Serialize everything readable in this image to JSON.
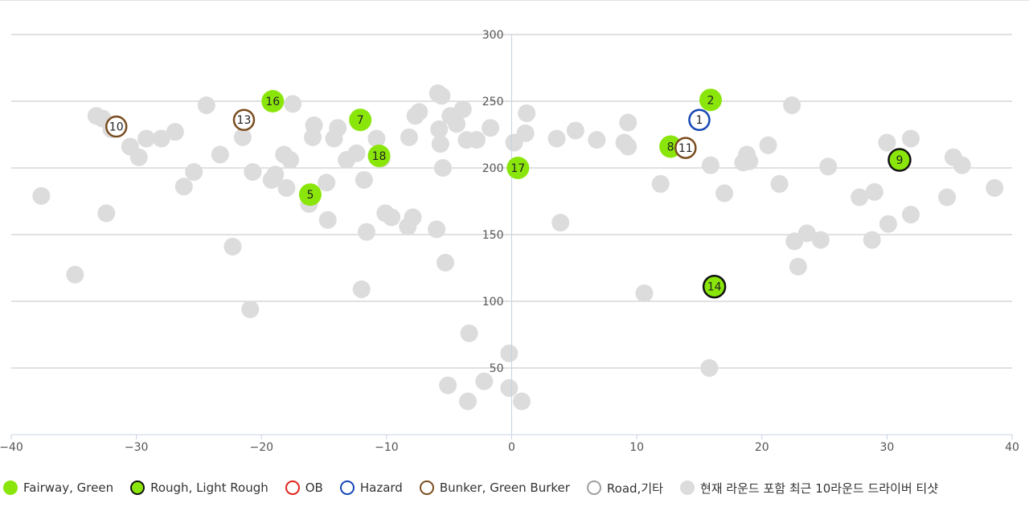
{
  "chart_data": {
    "type": "scatter",
    "title": "",
    "xlabel": "",
    "ylabel": "",
    "xlim": [
      -40,
      40
    ],
    "ylim": [
      0,
      300
    ],
    "x_ticks": [
      -40,
      -30,
      -20,
      -10,
      0,
      10,
      20,
      30,
      40
    ],
    "y_ticks": [
      50,
      100,
      150,
      200,
      250,
      300
    ],
    "grid": true,
    "legend_position": "bottom",
    "colors": {
      "fairway": "#8ae60a",
      "rough_stroke": "#111111",
      "ob": "#e0231b",
      "hazard": "#1446b4",
      "bunker": "#7a4d20",
      "road": "#9e9e9e",
      "history": "#dcdcdc"
    },
    "legend": [
      {
        "key": "fairway",
        "label": "Fairway, Green"
      },
      {
        "key": "rough",
        "label": "Rough, Light Rough"
      },
      {
        "key": "ob",
        "label": "OB"
      },
      {
        "key": "hazard",
        "label": "Hazard"
      },
      {
        "key": "bunker",
        "label": "Bunker, Green Burker"
      },
      {
        "key": "road",
        "label": "Road,기타"
      },
      {
        "key": "history",
        "label": "현재 라운드 포함 최근 10라운드 드라이버 티샷"
      }
    ],
    "history_points": [
      [
        -37.6,
        179
      ],
      [
        -34.9,
        120
      ],
      [
        -33.2,
        239
      ],
      [
        -32.7,
        237
      ],
      [
        -32.4,
        166
      ],
      [
        -32.0,
        229
      ],
      [
        -30.5,
        216
      ],
      [
        -29.8,
        208
      ],
      [
        -29.2,
        222
      ],
      [
        -28.0,
        222
      ],
      [
        -26.9,
        227
      ],
      [
        -26.2,
        186
      ],
      [
        -25.4,
        197
      ],
      [
        -24.4,
        247
      ],
      [
        -23.3,
        210
      ],
      [
        -22.3,
        141
      ],
      [
        -21.5,
        223
      ],
      [
        -20.9,
        94
      ],
      [
        -20.7,
        197
      ],
      [
        -19.2,
        191
      ],
      [
        -18.9,
        195
      ],
      [
        -18.2,
        210
      ],
      [
        -18.0,
        185
      ],
      [
        -17.7,
        206
      ],
      [
        -17.5,
        248
      ],
      [
        -16.2,
        173
      ],
      [
        -15.9,
        223
      ],
      [
        -15.8,
        232
      ],
      [
        -14.8,
        189
      ],
      [
        -14.7,
        161
      ],
      [
        -14.2,
        222
      ],
      [
        -13.9,
        230
      ],
      [
        -13.2,
        206
      ],
      [
        -12.4,
        211
      ],
      [
        -12.0,
        109
      ],
      [
        -11.8,
        191
      ],
      [
        -11.6,
        152
      ],
      [
        -10.8,
        222
      ],
      [
        -10.4,
        207
      ],
      [
        -10.1,
        166
      ],
      [
        -9.6,
        163
      ],
      [
        -8.3,
        156
      ],
      [
        -8.2,
        223
      ],
      [
        -7.9,
        163
      ],
      [
        -7.7,
        239
      ],
      [
        -7.4,
        242
      ],
      [
        -6.0,
        154
      ],
      [
        -5.9,
        256
      ],
      [
        -5.8,
        229
      ],
      [
        -5.7,
        218
      ],
      [
        -5.6,
        254
      ],
      [
        -5.5,
        200
      ],
      [
        -5.3,
        129
      ],
      [
        -5.1,
        37
      ],
      [
        -4.9,
        239
      ],
      [
        -4.4,
        233
      ],
      [
        -3.9,
        244
      ],
      [
        -3.6,
        221
      ],
      [
        -3.5,
        25
      ],
      [
        -3.4,
        76
      ],
      [
        -2.8,
        221
      ],
      [
        -2.2,
        40
      ],
      [
        -1.7,
        230
      ],
      [
        -0.2,
        61
      ],
      [
        -0.2,
        35
      ],
      [
        0.2,
        219
      ],
      [
        0.8,
        25
      ],
      [
        1.1,
        226
      ],
      [
        1.2,
        241
      ],
      [
        3.6,
        222
      ],
      [
        3.9,
        159
      ],
      [
        5.1,
        228
      ],
      [
        6.8,
        221
      ],
      [
        9.0,
        219
      ],
      [
        9.3,
        234
      ],
      [
        9.3,
        216
      ],
      [
        10.6,
        106
      ],
      [
        11.9,
        188
      ],
      [
        15.8,
        50
      ],
      [
        15.9,
        202
      ],
      [
        17.0,
        181
      ],
      [
        18.5,
        204
      ],
      [
        18.8,
        210
      ],
      [
        19.0,
        205
      ],
      [
        20.5,
        217
      ],
      [
        21.4,
        188
      ],
      [
        22.4,
        247
      ],
      [
        22.6,
        145
      ],
      [
        22.9,
        126
      ],
      [
        23.6,
        151
      ],
      [
        24.7,
        146
      ],
      [
        25.3,
        201
      ],
      [
        27.8,
        178
      ],
      [
        28.8,
        146
      ],
      [
        29.0,
        182
      ],
      [
        30.0,
        219
      ],
      [
        30.1,
        158
      ],
      [
        31.9,
        222
      ],
      [
        31.9,
        165
      ],
      [
        34.8,
        178
      ],
      [
        35.3,
        208
      ],
      [
        36.0,
        202
      ],
      [
        38.6,
        185
      ]
    ],
    "shots": [
      {
        "label": "1",
        "x": 15.0,
        "y": 236,
        "type": "hazard"
      },
      {
        "label": "2",
        "x": 15.9,
        "y": 251,
        "type": "fairway"
      },
      {
        "label": "5",
        "x": -16.1,
        "y": 180,
        "type": "fairway"
      },
      {
        "label": "7",
        "x": -12.1,
        "y": 236,
        "type": "fairway"
      },
      {
        "label": "8",
        "x": 12.7,
        "y": 216,
        "type": "fairway"
      },
      {
        "label": "9",
        "x": 31.0,
        "y": 206,
        "type": "rough"
      },
      {
        "label": "10",
        "x": -31.6,
        "y": 231,
        "type": "bunker"
      },
      {
        "label": "11",
        "x": 13.9,
        "y": 215,
        "type": "bunker"
      },
      {
        "label": "13",
        "x": -21.4,
        "y": 236,
        "type": "bunker"
      },
      {
        "label": "14",
        "x": 16.2,
        "y": 111,
        "type": "rough"
      },
      {
        "label": "16",
        "x": -19.1,
        "y": 250,
        "type": "fairway"
      },
      {
        "label": "17",
        "x": 0.5,
        "y": 200,
        "type": "fairway"
      },
      {
        "label": "18",
        "x": -10.6,
        "y": 209,
        "type": "fairway"
      }
    ]
  }
}
